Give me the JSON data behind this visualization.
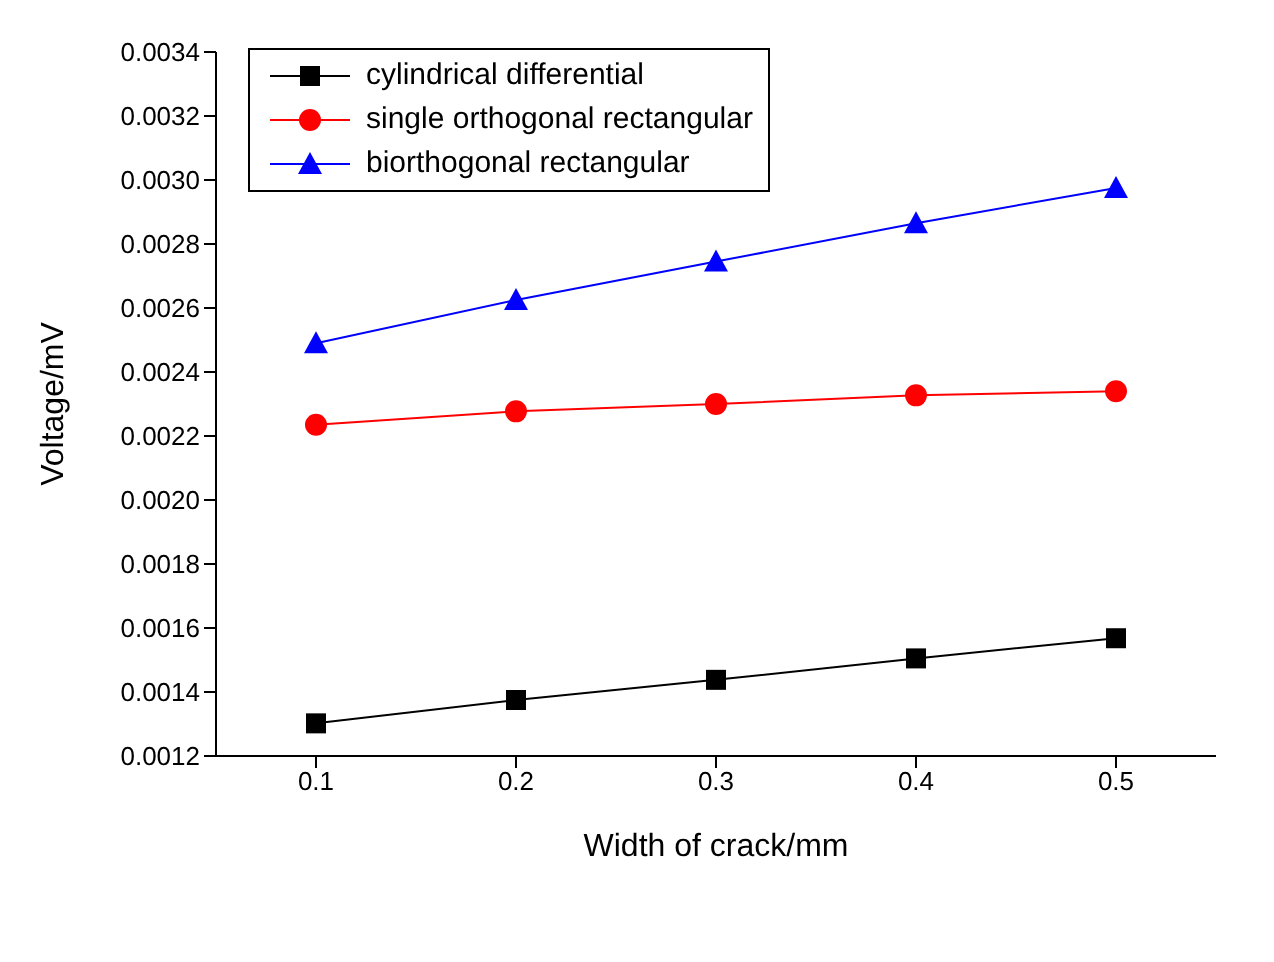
{
  "chart_data": {
    "type": "line",
    "xlabel": "Width of crack/mm",
    "ylabel": "Voltage/mV",
    "x": [
      0.1,
      0.2,
      0.3,
      0.4,
      0.5
    ],
    "series": [
      {
        "name": "cylindrical differential",
        "color": "#000000",
        "marker": "square",
        "values": [
          0.001302,
          0.001375,
          0.001438,
          0.001505,
          0.001568
        ]
      },
      {
        "name": "single orthogonal rectangular",
        "color": "#ff0000",
        "marker": "circle",
        "values": [
          0.002235,
          0.002277,
          0.0023,
          0.002327,
          0.00234
        ]
      },
      {
        "name": "biorthogonal rectangular",
        "color": "#0000ff",
        "marker": "triangle",
        "values": [
          0.00249,
          0.002625,
          0.002745,
          0.002865,
          0.002975
        ]
      }
    ],
    "xlim": [
      0.05,
      0.55
    ],
    "xticks": [
      0.1,
      0.2,
      0.3,
      0.4,
      0.5
    ],
    "ylim": [
      0.0012,
      0.0034
    ],
    "yticks": [
      0.0012,
      0.0014,
      0.0016,
      0.0018,
      {
        "value": 0.002,
        "label": "0.0020"
      },
      0.0022,
      0.0024,
      0.0026,
      0.0028,
      {
        "value": 0.003,
        "label": "0.0030"
      },
      0.0032,
      0.0034
    ],
    "grid": false,
    "legend": "top left",
    "line_style": "solid"
  }
}
